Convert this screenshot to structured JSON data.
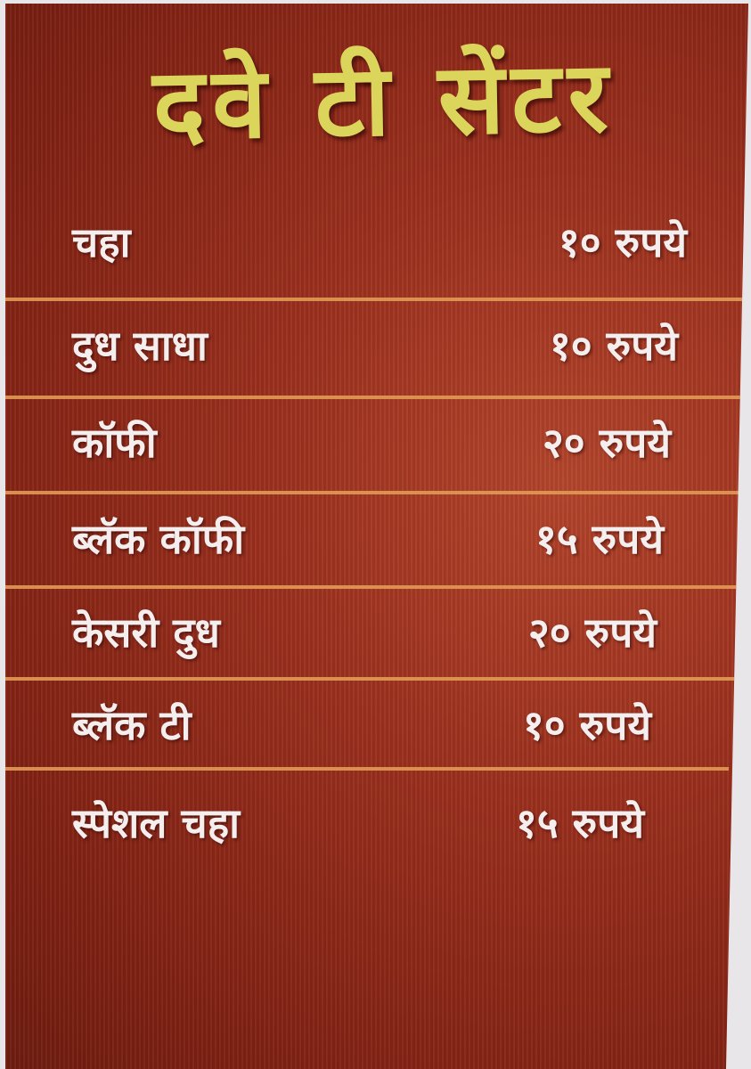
{
  "title": "दवे टी सेंटर",
  "colors": {
    "board": "#9a2f1d",
    "title": "#dcd55c",
    "text": "#f4eeee",
    "divider": "#e29a55"
  },
  "items": [
    {
      "name": "चहा",
      "price": "१० रुपये"
    },
    {
      "name": "दुध साधा",
      "price": "१० रुपये"
    },
    {
      "name": "कॉफी",
      "price": "२० रुपये"
    },
    {
      "name": "ब्लॅक कॉफी",
      "price": "१५ रुपये"
    },
    {
      "name": "केसरी दुध",
      "price": "२० रुपये"
    },
    {
      "name": "ब्लॅक टी",
      "price": "१० रुपये"
    },
    {
      "name": "स्पेशल चहा",
      "price": "१५ रुपये"
    }
  ]
}
